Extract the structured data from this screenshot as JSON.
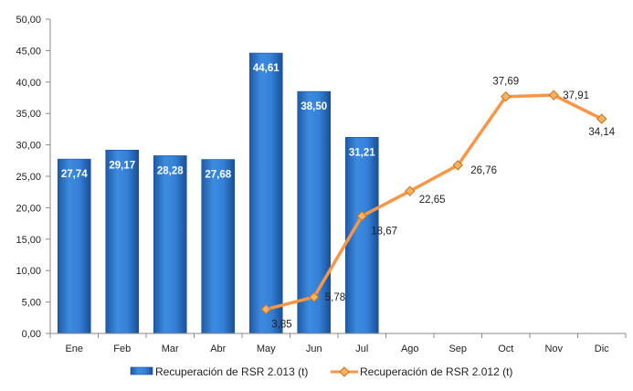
{
  "chart_data": {
    "type": "bar",
    "categories": [
      "Ene",
      "Feb",
      "Mar",
      "Abr",
      "May",
      "Jun",
      "Jul",
      "Ago",
      "Sep",
      "Oct",
      "Nov",
      "Dic"
    ],
    "series": [
      {
        "name": "Recuperación de RSR 2.013 (t)",
        "type": "bar",
        "values": [
          27.74,
          29.17,
          28.28,
          27.68,
          44.61,
          38.5,
          31.21,
          null,
          null,
          null,
          null,
          null
        ],
        "labels": [
          "27,74",
          "29,17",
          "28,28",
          "27,68",
          "44,61",
          "38,50",
          "31,21",
          "",
          "",
          "",
          "",
          ""
        ],
        "color": "#2e75c9"
      },
      {
        "name": "Recuperación de RSR 2.012 (t)",
        "type": "line",
        "values": [
          null,
          null,
          null,
          null,
          3.85,
          5.78,
          18.67,
          22.65,
          26.76,
          37.69,
          37.91,
          34.14
        ],
        "labels": [
          "",
          "",
          "",
          "",
          "3,85",
          "5,78",
          "18,67",
          "22,65",
          "26,76",
          "37,69",
          "37,91",
          "34,14"
        ],
        "color": "#f79646",
        "marker": "diamond"
      }
    ],
    "y_ticks": [
      "0,00",
      "5,00",
      "10,00",
      "15,00",
      "20,00",
      "25,00",
      "30,00",
      "35,00",
      "40,00",
      "45,00",
      "50,00"
    ],
    "ylim": [
      0,
      50
    ],
    "grid": false,
    "legend_position": "bottom",
    "title": "",
    "xlabel": "",
    "ylabel": ""
  }
}
